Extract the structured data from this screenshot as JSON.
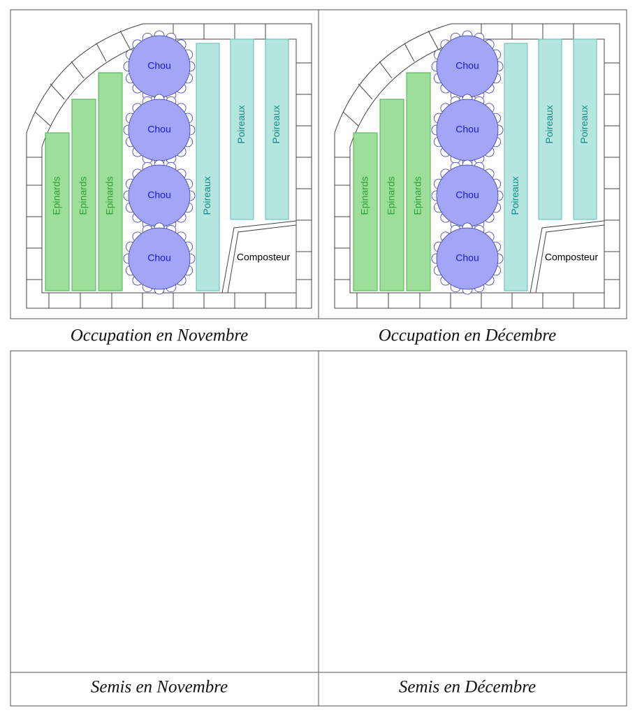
{
  "panels": [
    {
      "title": "Occupation en Novembre",
      "epinards": [
        "Epinards",
        "Epinards",
        "Epinards"
      ],
      "chou": [
        "Chou",
        "Chou",
        "Chou",
        "Chou"
      ],
      "poireaux": [
        "Poireaux",
        "Poireaux",
        "Poireaux"
      ],
      "composteur": "Composteur"
    },
    {
      "title": "Occupation en Décembre",
      "epinards": [
        "Epinards",
        "Epinards",
        "Epinards"
      ],
      "chou": [
        "Chou",
        "Chou",
        "Chou",
        "Chou"
      ],
      "poireaux": [
        "Poireaux",
        "Poireaux",
        "Poireaux"
      ],
      "composteur": "Composteur"
    }
  ],
  "sowing": [
    {
      "title": "Semis en Novembre"
    },
    {
      "title": "Semis en Décembre"
    }
  ]
}
